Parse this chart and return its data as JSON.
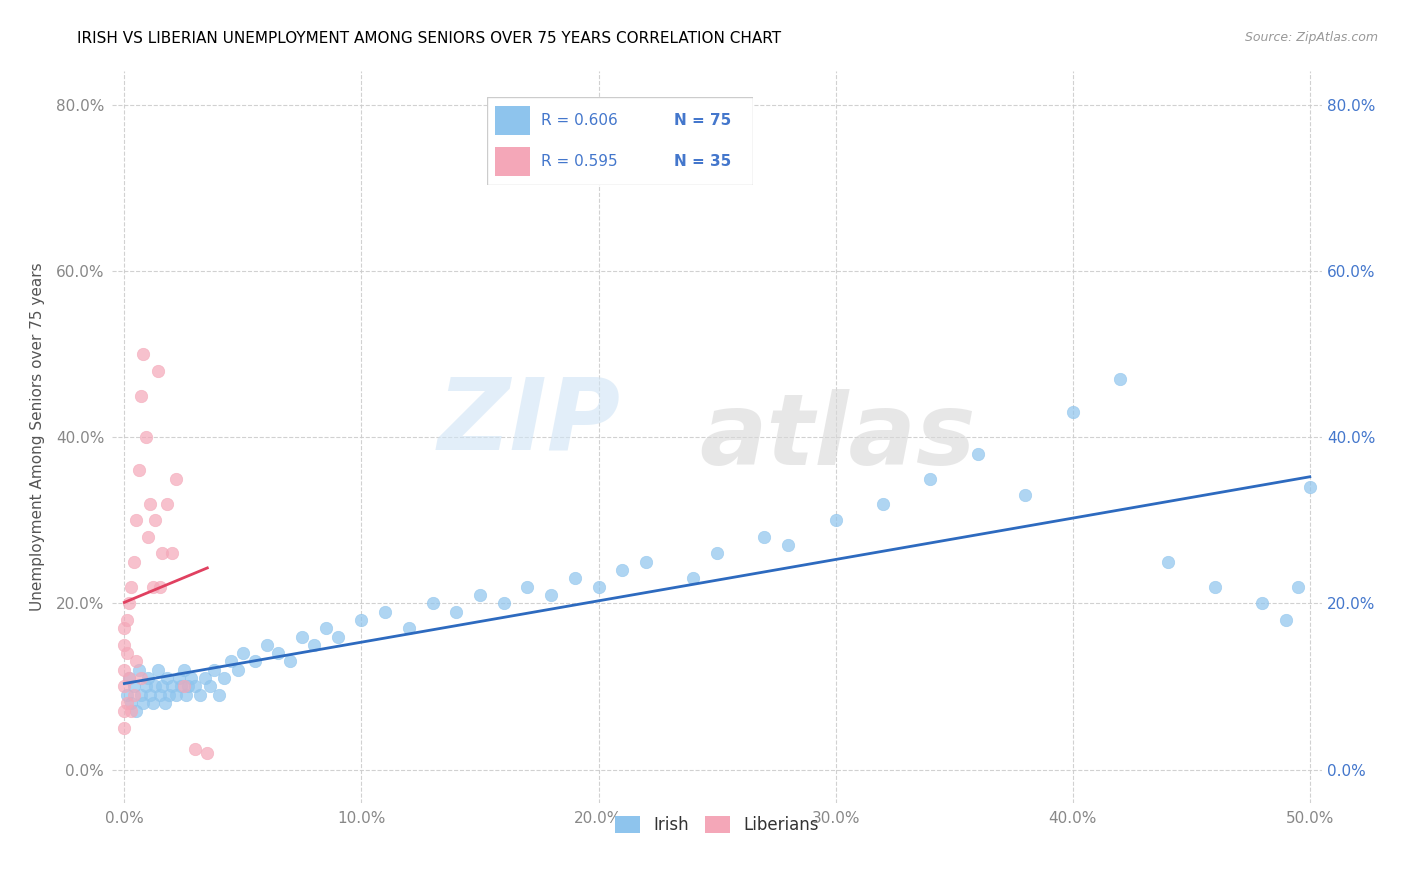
{
  "title": "IRISH VS LIBERIAN UNEMPLOYMENT AMONG SENIORS OVER 75 YEARS CORRELATION CHART",
  "source": "Source: ZipAtlas.com",
  "ylabel": "Unemployment Among Seniors over 75 years",
  "xlim": [
    -0.005,
    0.505
  ],
  "ylim": [
    -0.04,
    0.84
  ],
  "xticks": [
    0.0,
    0.1,
    0.2,
    0.3,
    0.4,
    0.5
  ],
  "xticklabels": [
    "0.0%",
    "10.0%",
    "20.0%",
    "30.0%",
    "40.0%",
    "50.0%"
  ],
  "yticks": [
    0.0,
    0.2,
    0.4,
    0.6,
    0.8
  ],
  "yticklabels": [
    "0.0%",
    "20.0%",
    "40.0%",
    "60.0%",
    "80.0%"
  ],
  "irish_color": "#8ec4ed",
  "liberian_color": "#f4a7b8",
  "irish_line_color": "#2d6abf",
  "liberian_line_color": "#e04060",
  "irish_x": [
    0.001,
    0.002,
    0.003,
    0.004,
    0.005,
    0.006,
    0.007,
    0.008,
    0.009,
    0.01,
    0.011,
    0.012,
    0.013,
    0.014,
    0.015,
    0.016,
    0.017,
    0.018,
    0.019,
    0.02,
    0.022,
    0.023,
    0.024,
    0.025,
    0.026,
    0.027,
    0.028,
    0.03,
    0.032,
    0.034,
    0.036,
    0.038,
    0.04,
    0.042,
    0.045,
    0.048,
    0.05,
    0.055,
    0.06,
    0.065,
    0.07,
    0.075,
    0.08,
    0.085,
    0.09,
    0.1,
    0.11,
    0.12,
    0.13,
    0.14,
    0.15,
    0.16,
    0.17,
    0.18,
    0.19,
    0.2,
    0.21,
    0.22,
    0.24,
    0.25,
    0.27,
    0.28,
    0.3,
    0.32,
    0.34,
    0.36,
    0.38,
    0.4,
    0.42,
    0.44,
    0.46,
    0.48,
    0.49,
    0.495,
    0.5
  ],
  "irish_y": [
    0.09,
    0.11,
    0.08,
    0.1,
    0.07,
    0.12,
    0.09,
    0.08,
    0.1,
    0.11,
    0.09,
    0.08,
    0.1,
    0.12,
    0.09,
    0.1,
    0.08,
    0.11,
    0.09,
    0.1,
    0.09,
    0.11,
    0.1,
    0.12,
    0.09,
    0.1,
    0.11,
    0.1,
    0.09,
    0.11,
    0.1,
    0.12,
    0.09,
    0.11,
    0.13,
    0.12,
    0.14,
    0.13,
    0.15,
    0.14,
    0.13,
    0.16,
    0.15,
    0.17,
    0.16,
    0.18,
    0.19,
    0.17,
    0.2,
    0.19,
    0.21,
    0.2,
    0.22,
    0.21,
    0.23,
    0.22,
    0.24,
    0.25,
    0.23,
    0.26,
    0.28,
    0.27,
    0.3,
    0.32,
    0.35,
    0.38,
    0.33,
    0.43,
    0.47,
    0.25,
    0.22,
    0.2,
    0.18,
    0.22,
    0.34
  ],
  "liberian_x": [
    0.0,
    0.0,
    0.0,
    0.0,
    0.0,
    0.0,
    0.001,
    0.001,
    0.001,
    0.002,
    0.002,
    0.003,
    0.003,
    0.004,
    0.004,
    0.005,
    0.005,
    0.006,
    0.007,
    0.007,
    0.008,
    0.009,
    0.01,
    0.011,
    0.012,
    0.013,
    0.014,
    0.015,
    0.016,
    0.018,
    0.02,
    0.022,
    0.025,
    0.03,
    0.035
  ],
  "liberian_y": [
    0.07,
    0.1,
    0.12,
    0.15,
    0.17,
    0.05,
    0.14,
    0.18,
    0.08,
    0.2,
    0.11,
    0.22,
    0.07,
    0.25,
    0.09,
    0.13,
    0.3,
    0.36,
    0.11,
    0.45,
    0.5,
    0.4,
    0.28,
    0.32,
    0.22,
    0.3,
    0.48,
    0.22,
    0.26,
    0.32,
    0.26,
    0.35,
    0.1,
    0.025,
    0.02
  ]
}
